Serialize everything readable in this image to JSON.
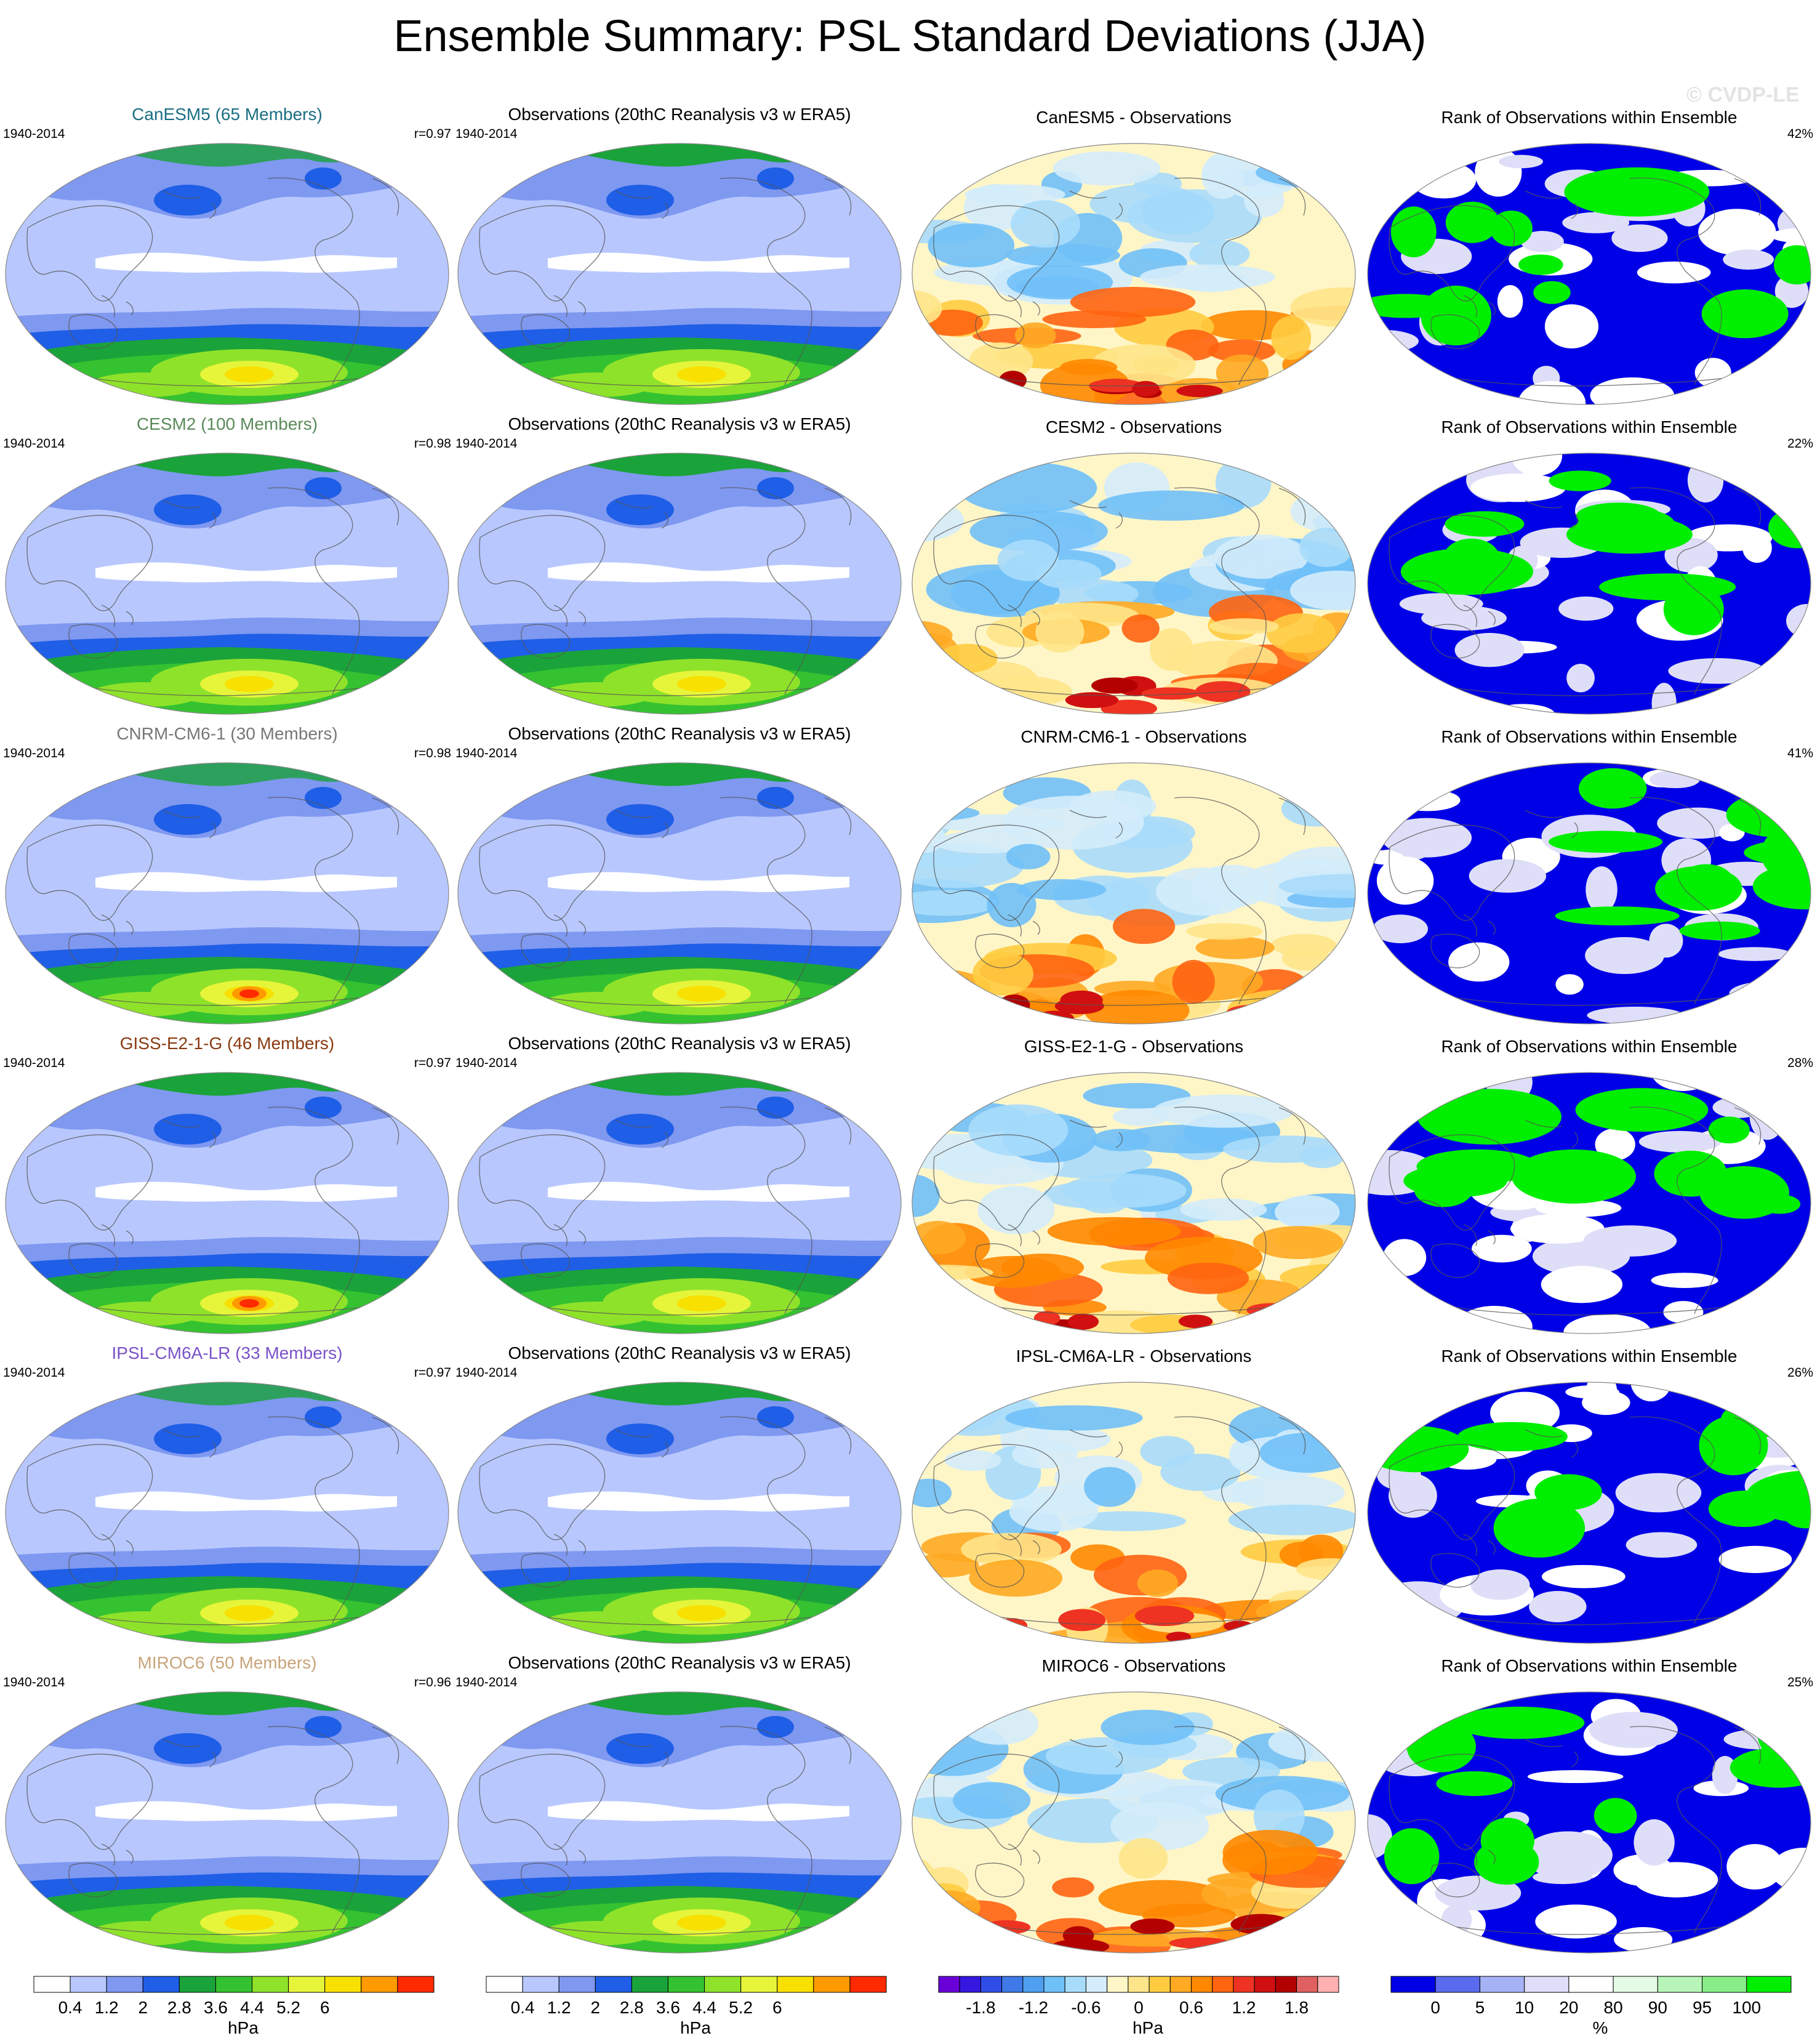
{
  "figure": {
    "title": "Ensemble Summary: PSL Standard Deviations (JJA)",
    "watermark": "© CVDP-LE"
  },
  "colors": {
    "model_levels": [
      "#ffffff",
      "#b8c8ff",
      "#7f98f0",
      "#1f5ee6",
      "#1aa33a",
      "#35c230",
      "#8fe22a",
      "#e6f53a",
      "#f8e000",
      "#ff9a00",
      "#ff2a00"
    ],
    "diff_levels": [
      "#6a00d8",
      "#3418e0",
      "#2f4de6",
      "#3f7ae8",
      "#4f9ff0",
      "#70c0f8",
      "#a8dcfb",
      "#d4ecfb",
      "#fff6c8",
      "#ffe58a",
      "#ffcc40",
      "#ffaa22",
      "#ff8800",
      "#ff6411",
      "#ee3322",
      "#d01010",
      "#b30000",
      "#e06060",
      "#ffb0b0"
    ],
    "rank_levels": [
      "#0000e6",
      "#5a6bf0",
      "#a6b2f6",
      "#dedef8",
      "#ffffff",
      "#e6fbe6",
      "#b8f5b8",
      "#88ee88",
      "#00ee00"
    ],
    "mean_title": "#1b6e83",
    "ocean_blue": "#b8c8ff"
  },
  "rows": [
    {
      "model": "CanESM5 (65 Members)",
      "model_color": "#1b6e83",
      "period": "1940-2014",
      "r": "r=0.97",
      "obs_title": "Observations (20thC Reanalysis v3 w ERA5)",
      "obs_period": "1940-2014",
      "diff_title": "CanESM5 - Observations",
      "rank_title": "Rank of Observations within Ensemble",
      "rank_pct": "42%"
    },
    {
      "model": "CESM2 (100 Members)",
      "model_color": "#5a8a5a",
      "period": "1940-2014",
      "r": "r=0.98",
      "obs_title": "Observations (20thC Reanalysis v3 w ERA5)",
      "obs_period": "1940-2014",
      "diff_title": "CESM2 - Observations",
      "rank_title": "Rank of Observations within Ensemble",
      "rank_pct": "22%"
    },
    {
      "model": "CNRM-CM6-1 (30 Members)",
      "model_color": "#777777",
      "period": "1940-2014",
      "r": "r=0.98",
      "obs_title": "Observations (20thC Reanalysis v3 w ERA5)",
      "obs_period": "1940-2014",
      "diff_title": "CNRM-CM6-1 - Observations",
      "rank_title": "Rank of Observations within Ensemble",
      "rank_pct": "41%"
    },
    {
      "model": "GISS-E2-1-G (46 Members)",
      "model_color": "#8a3a10",
      "period": "1940-2014",
      "r": "r=0.97",
      "obs_title": "Observations (20thC Reanalysis v3 w ERA5)",
      "obs_period": "1940-2014",
      "diff_title": "GISS-E2-1-G - Observations",
      "rank_title": "Rank of Observations within Ensemble",
      "rank_pct": "28%"
    },
    {
      "model": "IPSL-CM6A-LR (33 Members)",
      "model_color": "#7a52c8",
      "period": "1940-2014",
      "r": "r=0.97",
      "obs_title": "Observations (20thC Reanalysis v3 w ERA5)",
      "obs_period": "1940-2014",
      "diff_title": "IPSL-CM6A-LR - Observations",
      "rank_title": "Rank of Observations within Ensemble",
      "rank_pct": "26%"
    },
    {
      "model": "MIROC6 (50 Members)",
      "model_color": "#c8a47a",
      "period": "1940-2014",
      "r": "r=0.96",
      "obs_title": "Observations (20thC Reanalysis v3 w ERA5)",
      "obs_period": "1940-2014",
      "diff_title": "MIROC6 - Observations",
      "rank_title": "Rank of Observations within Ensemble",
      "rank_pct": "25%"
    }
  ],
  "colorbars": [
    {
      "unit": "hPa",
      "labels": [
        "0.4",
        "1.2",
        "2",
        "2.8",
        "3.6",
        "4.4",
        "5.2",
        "6"
      ],
      "palette": "model_levels"
    },
    {
      "unit": "hPa",
      "labels": [
        "0.4",
        "1.2",
        "2",
        "2.8",
        "3.6",
        "4.4",
        "5.2",
        "6"
      ],
      "palette": "model_levels"
    },
    {
      "unit": "hPa",
      "labels": [
        "-1.8",
        "-1.2",
        "-0.6",
        "0",
        "0.6",
        "1.2",
        "1.8"
      ],
      "palette": "diff_levels"
    },
    {
      "unit": "%",
      "labels": [
        "0",
        "5",
        "10",
        "20",
        "80",
        "90",
        "95",
        "100"
      ],
      "palette": "rank_levels"
    }
  ]
}
